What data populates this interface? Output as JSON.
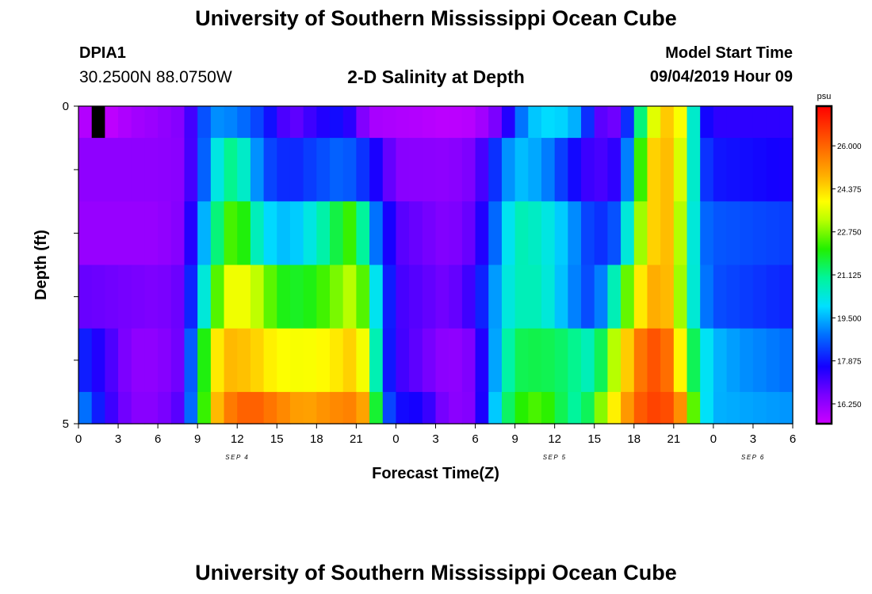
{
  "header": {
    "title": "University of Southern Mississippi Ocean Cube",
    "station_id": "DPIA1",
    "coordinates": "30.2500N 88.0750W",
    "plot_title": "2-D Salinity at Depth",
    "model_label": "Model Start Time",
    "model_time": "09/04/2019 Hour 09"
  },
  "footer": {
    "title": "University of Southern Mississippi Ocean Cube"
  },
  "chart_data": {
    "type": "heatmap",
    "title": "2-D Salinity at Depth",
    "xlabel": "Forecast Time(Z)",
    "ylabel": "Depth (ft)",
    "x_tick_labels": [
      "0",
      "3",
      "6",
      "9",
      "12",
      "15",
      "18",
      "21",
      "0",
      "3",
      "6",
      "9",
      "12",
      "15",
      "18",
      "21",
      "0",
      "3",
      "6"
    ],
    "day_labels": [
      {
        "label": "SEP 4",
        "tick": 4
      },
      {
        "label": "SEP 5",
        "tick": 12
      },
      {
        "label": "SEP 6",
        "tick": 17
      }
    ],
    "y_tick_labels": [
      "0",
      "5"
    ],
    "ylim": [
      0,
      5
    ],
    "x_hours_range": [
      0,
      54
    ],
    "colorbar": {
      "unit": "psu",
      "ticks": [
        "26.000",
        "24.375",
        "22.750",
        "21.125",
        "19.500",
        "17.875",
        "16.250"
      ],
      "range": [
        15.5,
        27.5
      ]
    },
    "salinity_rows": [
      {
        "depth_range": "0.0-0.5",
        "nodes": [
          [
            0,
            15.9
          ],
          [
            2,
            15.6
          ],
          [
            4,
            16.0
          ],
          [
            6,
            16.2
          ],
          [
            8,
            16.5
          ],
          [
            10,
            19.2
          ],
          [
            12,
            19.0
          ],
          [
            14,
            18.2
          ],
          [
            16,
            16.7
          ],
          [
            18,
            17.4
          ],
          [
            20,
            17.9
          ],
          [
            22,
            16.0
          ],
          [
            24,
            15.9
          ],
          [
            28,
            15.7
          ],
          [
            30,
            15.8
          ],
          [
            32,
            16.8
          ],
          [
            34,
            19.6
          ],
          [
            36,
            20.0
          ],
          [
            38,
            19.3
          ],
          [
            39,
            17.0
          ],
          [
            41,
            16.6
          ],
          [
            43,
            22.8
          ],
          [
            44,
            24.4
          ],
          [
            45,
            24.7
          ],
          [
            46,
            23.0
          ],
          [
            47,
            18.0
          ],
          [
            48,
            17.4
          ],
          [
            54,
            17.4
          ]
        ]
      },
      {
        "depth_range": "0.5-1.5",
        "nodes": [
          [
            0,
            16.3
          ],
          [
            6,
            16.3
          ],
          [
            8,
            16.4
          ],
          [
            9,
            17.9
          ],
          [
            10,
            19.5
          ],
          [
            11,
            21.0
          ],
          [
            12,
            21.2
          ],
          [
            14,
            18.5
          ],
          [
            16,
            18.0
          ],
          [
            18,
            18.4
          ],
          [
            20,
            18.8
          ],
          [
            22,
            18.0
          ],
          [
            24,
            16.4
          ],
          [
            28,
            16.3
          ],
          [
            30,
            16.6
          ],
          [
            32,
            18.7
          ],
          [
            33,
            19.7
          ],
          [
            35,
            19.3
          ],
          [
            37,
            18.0
          ],
          [
            39,
            17.0
          ],
          [
            41,
            17.5
          ],
          [
            42,
            20.5
          ],
          [
            43,
            24.0
          ],
          [
            44,
            24.9
          ],
          [
            45,
            24.5
          ],
          [
            46,
            22.5
          ],
          [
            47,
            18.5
          ],
          [
            48,
            17.9
          ],
          [
            54,
            17.6
          ]
        ]
      },
      {
        "depth_range": "1.5-2.5",
        "nodes": [
          [
            0,
            16.2
          ],
          [
            6,
            16.2
          ],
          [
            8,
            16.5
          ],
          [
            9,
            18.5
          ],
          [
            10,
            20.5
          ],
          [
            11,
            22.0
          ],
          [
            12,
            22.7
          ],
          [
            14,
            20.0
          ],
          [
            16,
            19.5
          ],
          [
            18,
            20.5
          ],
          [
            20,
            22.0
          ],
          [
            21,
            22.5
          ],
          [
            22,
            19.5
          ],
          [
            24,
            17.0
          ],
          [
            28,
            16.4
          ],
          [
            30,
            16.9
          ],
          [
            32,
            19.4
          ],
          [
            33,
            20.8
          ],
          [
            35,
            20.5
          ],
          [
            37,
            19.5
          ],
          [
            39,
            18.0
          ],
          [
            41,
            18.7
          ],
          [
            42,
            22.0
          ],
          [
            43,
            24.0
          ],
          [
            44,
            24.9
          ],
          [
            45,
            24.5
          ],
          [
            46,
            21.8
          ],
          [
            47,
            18.9
          ],
          [
            48,
            18.6
          ],
          [
            54,
            18.3
          ]
        ]
      },
      {
        "depth_range": "2.5-3.5",
        "nodes": [
          [
            0,
            16.8
          ],
          [
            6,
            16.5
          ],
          [
            8,
            16.8
          ],
          [
            9,
            19.3
          ],
          [
            10,
            21.4
          ],
          [
            11,
            23.5
          ],
          [
            12,
            24.0
          ],
          [
            14,
            23.0
          ],
          [
            15,
            22.0
          ],
          [
            17,
            21.8
          ],
          [
            19,
            22.5
          ],
          [
            21,
            23.4
          ],
          [
            22,
            21.5
          ],
          [
            23,
            18.7
          ],
          [
            24,
            17.2
          ],
          [
            28,
            16.6
          ],
          [
            30,
            17.4
          ],
          [
            32,
            19.9
          ],
          [
            33,
            20.7
          ],
          [
            35,
            20.7
          ],
          [
            37,
            19.3
          ],
          [
            39,
            18.2
          ],
          [
            40,
            19.8
          ],
          [
            42,
            23.5
          ],
          [
            43,
            24.8
          ],
          [
            44,
            25.0
          ],
          [
            45,
            24.5
          ],
          [
            46,
            21.5
          ],
          [
            47,
            19.3
          ],
          [
            48,
            18.5
          ],
          [
            54,
            18.0
          ]
        ]
      },
      {
        "depth_range": "3.5-4.5",
        "nodes": [
          [
            0,
            18.2
          ],
          [
            2,
            17.3
          ],
          [
            4,
            16.3
          ],
          [
            6,
            16.3
          ],
          [
            8,
            16.8
          ],
          [
            9,
            20.5
          ],
          [
            10,
            23.5
          ],
          [
            11,
            24.8
          ],
          [
            13,
            24.6
          ],
          [
            15,
            23.9
          ],
          [
            17,
            23.8
          ],
          [
            19,
            24.0
          ],
          [
            21,
            24.6
          ],
          [
            22,
            23.0
          ],
          [
            23,
            18.5
          ],
          [
            24,
            17.3
          ],
          [
            28,
            16.2
          ],
          [
            30,
            16.6
          ],
          [
            32,
            20.3
          ],
          [
            33,
            21.5
          ],
          [
            35,
            21.6
          ],
          [
            37,
            21.3
          ],
          [
            39,
            20.5
          ],
          [
            40,
            22.5
          ],
          [
            42,
            25.2
          ],
          [
            43,
            26.3
          ],
          [
            44,
            26.2
          ],
          [
            45,
            25.5
          ],
          [
            46,
            22.5
          ],
          [
            47,
            20.5
          ],
          [
            48,
            19.6
          ],
          [
            50,
            19.2
          ],
          [
            54,
            18.8
          ]
        ]
      },
      {
        "depth_range": "4.5-5.0",
        "nodes": [
          [
            0,
            19.3
          ],
          [
            2,
            17.5
          ],
          [
            4,
            16.4
          ],
          [
            6,
            16.4
          ],
          [
            8,
            17.1
          ],
          [
            9,
            20.5
          ],
          [
            10,
            24.0
          ],
          [
            11,
            25.5
          ],
          [
            13,
            26.2
          ],
          [
            15,
            25.6
          ],
          [
            17,
            25.0
          ],
          [
            19,
            25.4
          ],
          [
            21,
            25.6
          ],
          [
            22,
            24.5
          ],
          [
            23,
            19.0
          ],
          [
            24,
            17.8
          ],
          [
            26,
            17.6
          ],
          [
            28,
            16.3
          ],
          [
            30,
            16.5
          ],
          [
            32,
            20.8
          ],
          [
            33,
            22.0
          ],
          [
            35,
            22.5
          ],
          [
            37,
            21.2
          ],
          [
            38,
            20.8
          ],
          [
            40,
            23.5
          ],
          [
            42,
            25.8
          ],
          [
            43,
            26.5
          ],
          [
            44,
            26.5
          ],
          [
            45,
            26.2
          ],
          [
            46,
            24.5
          ],
          [
            47,
            20.5
          ],
          [
            48,
            19.5
          ],
          [
            54,
            19.2
          ]
        ]
      }
    ]
  }
}
